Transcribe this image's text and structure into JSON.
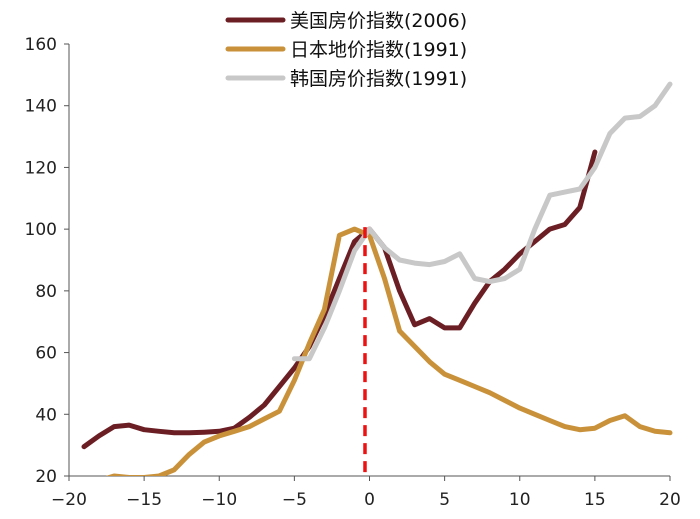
{
  "chart_data": {
    "type": "line",
    "title": "",
    "xlabel": "",
    "ylabel": "",
    "xlim": [
      -20,
      20
    ],
    "ylim": [
      20,
      160
    ],
    "xticks": [
      -20,
      -15,
      -10,
      -5,
      0,
      5,
      10,
      15,
      20
    ],
    "yticks": [
      20,
      40,
      60,
      80,
      100,
      120,
      140,
      160
    ],
    "xtick_labels": [
      "−20",
      "−15",
      "−10",
      "−5",
      "0",
      "5",
      "10",
      "15",
      "20"
    ],
    "ytick_labels": [
      "20",
      "40",
      "60",
      "80",
      "100",
      "120",
      "140",
      "160"
    ],
    "grid": false,
    "legend_position": "top",
    "reference_line": {
      "x": -0.3,
      "style": "dashed",
      "color": "#ee1111"
    },
    "series": [
      {
        "name": "美国房价指数(2006)",
        "color": "#6b1f24",
        "x": [
          -19,
          -18,
          -17,
          -16,
          -15,
          -14,
          -13,
          -12,
          -11,
          -10,
          -9,
          -8,
          -7,
          -6,
          -5,
          -4,
          -3,
          -2,
          -1,
          0,
          1,
          2,
          3,
          4,
          5,
          6,
          7,
          8,
          9,
          10,
          11,
          12,
          13,
          14,
          15
        ],
        "y": [
          29.5,
          33,
          36,
          36.5,
          35,
          34.5,
          34,
          34,
          34.2,
          34.5,
          35.5,
          39,
          43,
          49,
          55,
          62,
          72,
          84,
          96,
          100,
          94,
          80,
          69,
          71,
          68,
          68,
          76,
          83,
          87,
          92,
          96,
          100,
          101.5,
          107,
          125
        ]
      },
      {
        "name": "日本地价指数(1991)",
        "color": "#c9923a",
        "x": [
          -18,
          -17,
          -16,
          -15,
          -14,
          -13,
          -12,
          -11,
          -10,
          -9,
          -8,
          -7,
          -6,
          -5,
          -4,
          -3,
          -2,
          -1,
          0,
          1,
          2,
          3,
          4,
          5,
          6,
          7,
          8,
          9,
          10,
          11,
          12,
          13,
          14,
          15,
          16,
          17,
          18,
          19,
          20
        ],
        "y": [
          18.5,
          20,
          19.5,
          19.5,
          20,
          22,
          27,
          31,
          33,
          34.5,
          36,
          38.5,
          41,
          51,
          63,
          74,
          98,
          100,
          98,
          84,
          67,
          62,
          57,
          53,
          51,
          49,
          47,
          44.5,
          42,
          40,
          38,
          36,
          35,
          35.5,
          38,
          39.5,
          36,
          34.5,
          34
        ]
      },
      {
        "name": "韩国房价指数(1991)",
        "color": "#c8c8c8",
        "x": [
          -5,
          -4,
          -3,
          -2,
          -1,
          0,
          1,
          2,
          3,
          4,
          5,
          6,
          7,
          8,
          9,
          10,
          11,
          12,
          13,
          14,
          15,
          16,
          17,
          18,
          19,
          20
        ],
        "y": [
          58,
          58,
          68,
          80,
          93,
          100,
          94,
          90,
          89,
          88.5,
          89.5,
          92,
          84,
          83,
          84,
          87,
          100,
          111,
          112,
          113,
          120,
          131,
          136,
          136.5,
          140,
          147
        ]
      }
    ]
  }
}
